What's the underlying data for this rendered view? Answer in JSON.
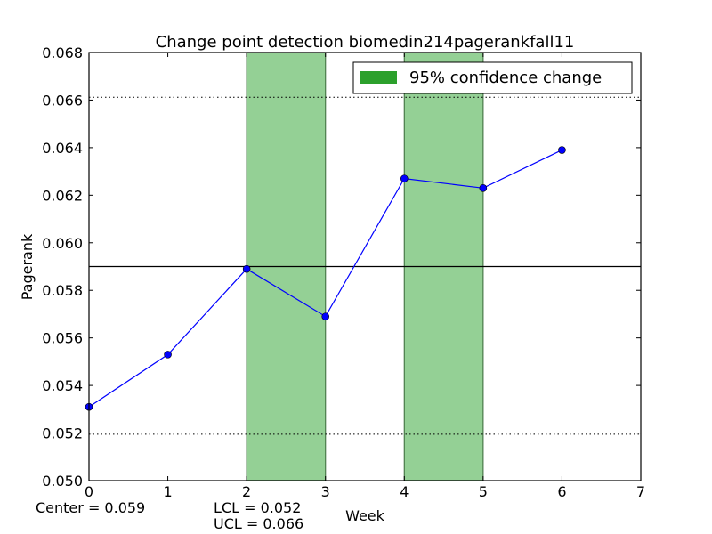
{
  "chart_data": {
    "type": "line",
    "title": "Change point detection biomedin214pagerankfall11",
    "xlabel": "Week",
    "ylabel": "Pagerank",
    "xlim": [
      0,
      7
    ],
    "ylim": [
      0.05,
      0.068
    ],
    "x_ticks": [
      "0",
      "1",
      "2",
      "3",
      "4",
      "5",
      "6",
      "7"
    ],
    "y_ticks": [
      "0.050",
      "0.052",
      "0.054",
      "0.056",
      "0.058",
      "0.060",
      "0.062",
      "0.064",
      "0.066",
      "0.068"
    ],
    "x": [
      0,
      1,
      2,
      3,
      4,
      5,
      6
    ],
    "values": [
      0.0531,
      0.0553,
      0.0589,
      0.0569,
      0.0627,
      0.0623,
      0.0639
    ],
    "center_line": 0.059,
    "control_limits": [
      0.05195,
      0.06612
    ],
    "change_regions": [
      [
        2,
        3
      ],
      [
        4,
        5
      ]
    ],
    "legend": {
      "label": "95% confidence change",
      "placement": "top-right"
    },
    "grid": false,
    "colors": {
      "line": "#0000ff",
      "marker": "#0000ff",
      "region_fill": "#94d095",
      "legend_patch": "#2ca02c"
    }
  },
  "footer": {
    "center": "Center = 0.059",
    "lcl": "LCL = 0.052",
    "ucl": "UCL = 0.066"
  }
}
